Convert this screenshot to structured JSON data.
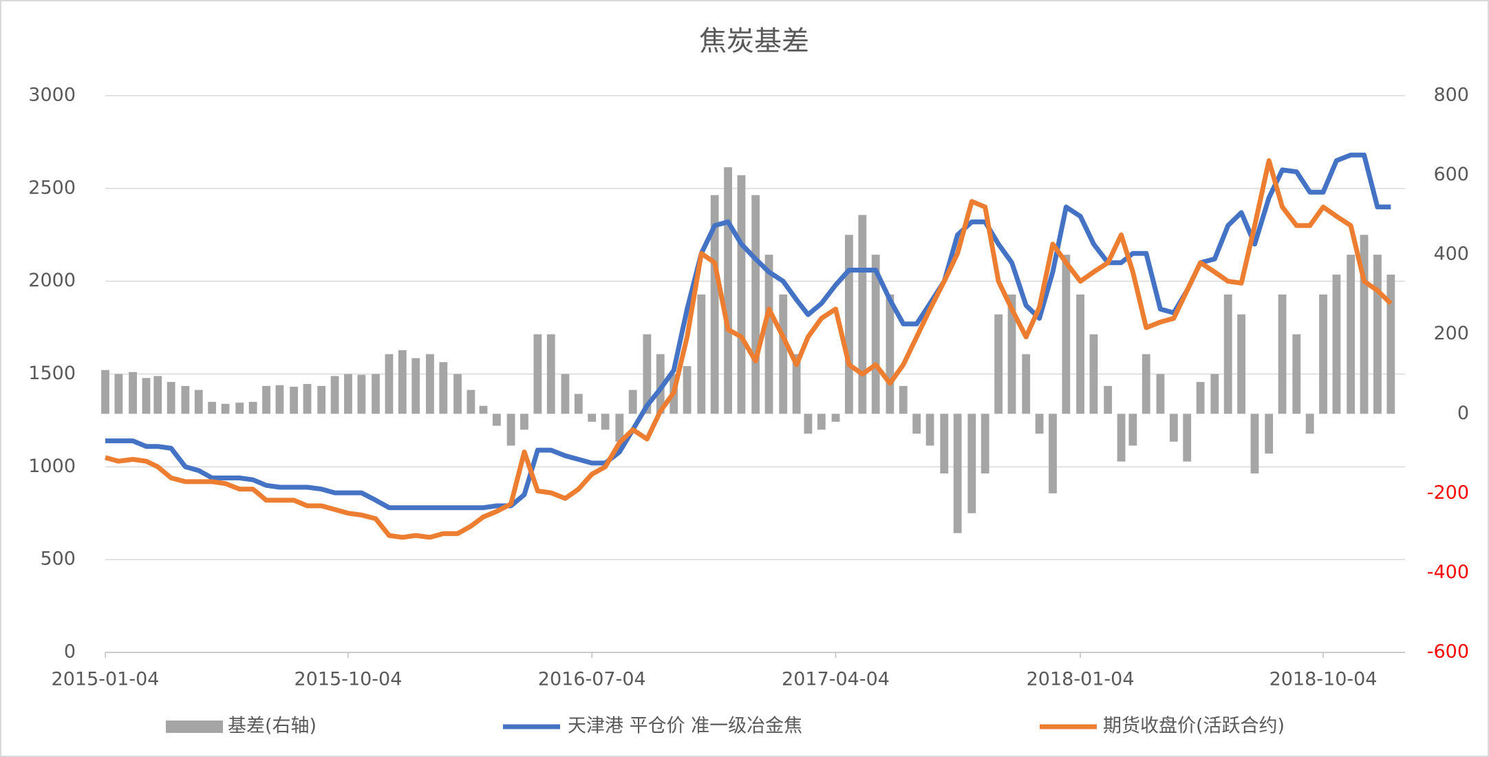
{
  "chart_data": {
    "type": "bar-line-combo",
    "title": "焦炭基差",
    "x": [
      "2015-01-04",
      "2015-01-19",
      "2015-02-04",
      "2015-02-19",
      "2015-03-04",
      "2015-03-19",
      "2015-04-04",
      "2015-04-19",
      "2015-05-04",
      "2015-05-19",
      "2015-06-04",
      "2015-06-19",
      "2015-07-04",
      "2015-07-19",
      "2015-08-04",
      "2015-08-19",
      "2015-09-04",
      "2015-09-19",
      "2015-10-04",
      "2015-10-19",
      "2015-11-04",
      "2015-11-19",
      "2015-12-04",
      "2015-12-19",
      "2016-01-04",
      "2016-01-19",
      "2016-02-04",
      "2016-02-19",
      "2016-03-04",
      "2016-03-19",
      "2016-04-04",
      "2016-04-19",
      "2016-05-04",
      "2016-05-19",
      "2016-06-04",
      "2016-06-19",
      "2016-07-04",
      "2016-07-19",
      "2016-08-04",
      "2016-08-19",
      "2016-09-04",
      "2016-09-19",
      "2016-10-04",
      "2016-10-19",
      "2016-11-04",
      "2016-11-19",
      "2016-12-04",
      "2016-12-19",
      "2017-01-04",
      "2017-01-19",
      "2017-02-04",
      "2017-02-19",
      "2017-03-04",
      "2017-03-19",
      "2017-04-04",
      "2017-04-19",
      "2017-05-04",
      "2017-05-19",
      "2017-06-04",
      "2017-06-19",
      "2017-07-04",
      "2017-07-19",
      "2017-08-04",
      "2017-08-19",
      "2017-09-04",
      "2017-09-19",
      "2017-10-04",
      "2017-10-19",
      "2017-11-04",
      "2017-11-19",
      "2017-12-04",
      "2017-12-19",
      "2018-01-04",
      "2018-01-19",
      "2018-02-04",
      "2018-02-19",
      "2018-03-04",
      "2018-03-19",
      "2018-04-04",
      "2018-04-19",
      "2018-05-04",
      "2018-05-19",
      "2018-06-04",
      "2018-06-19",
      "2018-07-04",
      "2018-07-19",
      "2018-08-04",
      "2018-08-19",
      "2018-09-04",
      "2018-09-19",
      "2018-10-04",
      "2018-10-19",
      "2018-11-04",
      "2018-11-19",
      "2018-12-04",
      "2018-12-19"
    ],
    "xlim": [
      "2015-01-04",
      "2019-01-04"
    ],
    "xticks": [
      "2015-01-04",
      "2015-10-04",
      "2016-07-04",
      "2017-04-04",
      "2018-01-04",
      "2018-10-04"
    ],
    "ylim": [
      0,
      3000
    ],
    "yticks": [
      0,
      500,
      1000,
      1500,
      2000,
      2500,
      3000
    ],
    "y2lim": [
      -600,
      800
    ],
    "y2ticks": [
      -600,
      -400,
      -200,
      0,
      200,
      400,
      600,
      800
    ],
    "y2_negative_tick_color": "#ff0000",
    "grid": true,
    "legend": "bottom",
    "series": [
      {
        "name": "基差(右轴)",
        "type": "bar",
        "axis": "y2",
        "color": "#a5a5a5",
        "values": [
          110,
          100,
          105,
          90,
          95,
          80,
          70,
          60,
          30,
          25,
          28,
          30,
          70,
          72,
          68,
          75,
          70,
          95,
          100,
          98,
          100,
          150,
          160,
          140,
          150,
          130,
          100,
          60,
          20,
          -30,
          -80,
          -40,
          200,
          200,
          100,
          50,
          -20,
          -40,
          -70,
          60,
          200,
          150,
          100,
          120,
          300,
          550,
          620,
          600,
          550,
          400,
          300,
          150,
          -50,
          -40,
          -20,
          450,
          500,
          400,
          300,
          70,
          -50,
          -80,
          -150,
          -300,
          -250,
          -150,
          250,
          300,
          150,
          -50,
          -200,
          400,
          300,
          200,
          70,
          -120,
          -80,
          150,
          100,
          -70,
          -120,
          80,
          100,
          300,
          250,
          -150,
          -100,
          300,
          200,
          -50,
          300,
          350,
          400,
          450,
          400,
          350
        ]
      },
      {
        "name": "天津港 平仓价 准一级冶金焦",
        "type": "line",
        "color": "#4472c4",
        "values": [
          1140,
          1140,
          1140,
          1110,
          1110,
          1100,
          1000,
          980,
          940,
          940,
          940,
          930,
          900,
          890,
          890,
          890,
          880,
          860,
          860,
          860,
          820,
          780,
          780,
          780,
          780,
          780,
          780,
          780,
          780,
          790,
          790,
          850,
          1090,
          1090,
          1060,
          1040,
          1020,
          1020,
          1080,
          1200,
          1330,
          1420,
          1520,
          1850,
          2150,
          2300,
          2320,
          2200,
          2120,
          2050,
          2000,
          1900,
          1820,
          1880,
          1980,
          2060,
          2060,
          2060,
          1900,
          1770,
          1770,
          1880,
          2000,
          2250,
          2320,
          2320,
          2200,
          2100,
          1870,
          1800,
          2050,
          2400,
          2350,
          2200,
          2100,
          2100,
          2150,
          2150,
          1850,
          1830,
          1950,
          2100,
          2120,
          2300,
          2370,
          2200,
          2450,
          2600,
          2590,
          2480,
          2480,
          2650,
          2680,
          2680,
          2400,
          2400
        ]
      },
      {
        "name": "期货收盘价(活跃合约)",
        "type": "line",
        "color": "#ed7d31",
        "values": [
          1050,
          1030,
          1040,
          1030,
          1000,
          940,
          920,
          920,
          920,
          910,
          880,
          880,
          820,
          820,
          820,
          790,
          790,
          770,
          750,
          740,
          720,
          630,
          620,
          630,
          620,
          640,
          640,
          680,
          730,
          760,
          800,
          1080,
          870,
          860,
          830,
          880,
          960,
          1000,
          1130,
          1200,
          1150,
          1300,
          1400,
          1700,
          2150,
          2100,
          1740,
          1700,
          1570,
          1850,
          1700,
          1550,
          1700,
          1800,
          1850,
          1550,
          1500,
          1550,
          1450,
          1550,
          1700,
          1850,
          2000,
          2150,
          2430,
          2400,
          2000,
          1850,
          1700,
          1860,
          2200,
          2100,
          2000,
          2050,
          2100,
          2250,
          2050,
          1750,
          1780,
          1800,
          1950,
          2100,
          2050,
          2000,
          1990,
          2300,
          2650,
          2400,
          2300,
          2300,
          2400,
          2350,
          2300,
          2000,
          1950,
          1880
        ]
      }
    ]
  }
}
